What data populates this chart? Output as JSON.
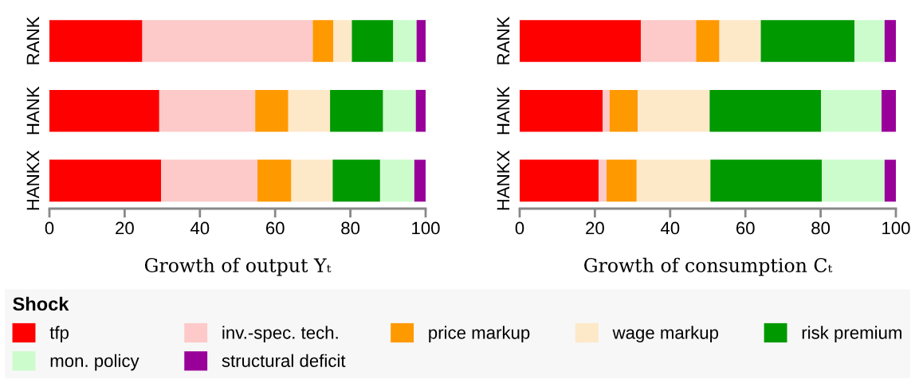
{
  "chart_data": [
    {
      "type": "bar",
      "orientation": "horizontal",
      "stacked": true,
      "xlabel": "Growth of output Yₜ",
      "categories": [
        "RANK",
        "HANK",
        "HANKX"
      ],
      "xlim": [
        0,
        100
      ],
      "xticks": [
        0,
        20,
        40,
        60,
        80,
        100
      ],
      "grid": false,
      "legend": "bottom",
      "legend_title": "Shock",
      "series": [
        {
          "name": "tfp",
          "color": "#ff0000",
          "values": [
            24.7,
            29.2,
            29.7
          ]
        },
        {
          "name": "inv.-spec. tech.",
          "color": "#fdc9c9",
          "values": [
            45.3,
            25.5,
            25.6
          ]
        },
        {
          "name": "price markup",
          "color": "#ff9900",
          "values": [
            5.5,
            8.8,
            9.0
          ]
        },
        {
          "name": "wage markup",
          "color": "#fde8c8",
          "values": [
            4.9,
            11.1,
            11.0
          ]
        },
        {
          "name": "risk premium",
          "color": "#009900",
          "values": [
            11.0,
            14.1,
            12.6
          ]
        },
        {
          "name": "mon. policy",
          "color": "#ccfccc",
          "values": [
            6.2,
            8.7,
            9.1
          ]
        },
        {
          "name": "structural deficit",
          "color": "#990099",
          "values": [
            2.4,
            2.6,
            3.0
          ]
        }
      ]
    },
    {
      "type": "bar",
      "orientation": "horizontal",
      "stacked": true,
      "xlabel": "Growth of consumption Cₜ",
      "categories": [
        "RANK",
        "HANK",
        "HANKX"
      ],
      "xlim": [
        0,
        100
      ],
      "xticks": [
        0,
        20,
        40,
        60,
        80,
        100
      ],
      "grid": false,
      "series": [
        {
          "color": "#ff0000",
          "values": [
            32.2,
            22.1,
            21.0
          ]
        },
        {
          "color": "#fdc9c9",
          "values": [
            14.7,
            1.8,
            2.1
          ]
        },
        {
          "color": "#ff9900",
          "values": [
            6.2,
            7.5,
            8.0
          ]
        },
        {
          "color": "#fde8c8",
          "values": [
            11.0,
            19.1,
            19.6
          ]
        },
        {
          "color": "#009900",
          "values": [
            24.9,
            29.6,
            29.6
          ]
        },
        {
          "color": "#ccfccc",
          "values": [
            8.0,
            16.1,
            16.7
          ]
        },
        {
          "color": "#990099",
          "values": [
            3.0,
            3.8,
            3.0
          ]
        }
      ]
    }
  ]
}
